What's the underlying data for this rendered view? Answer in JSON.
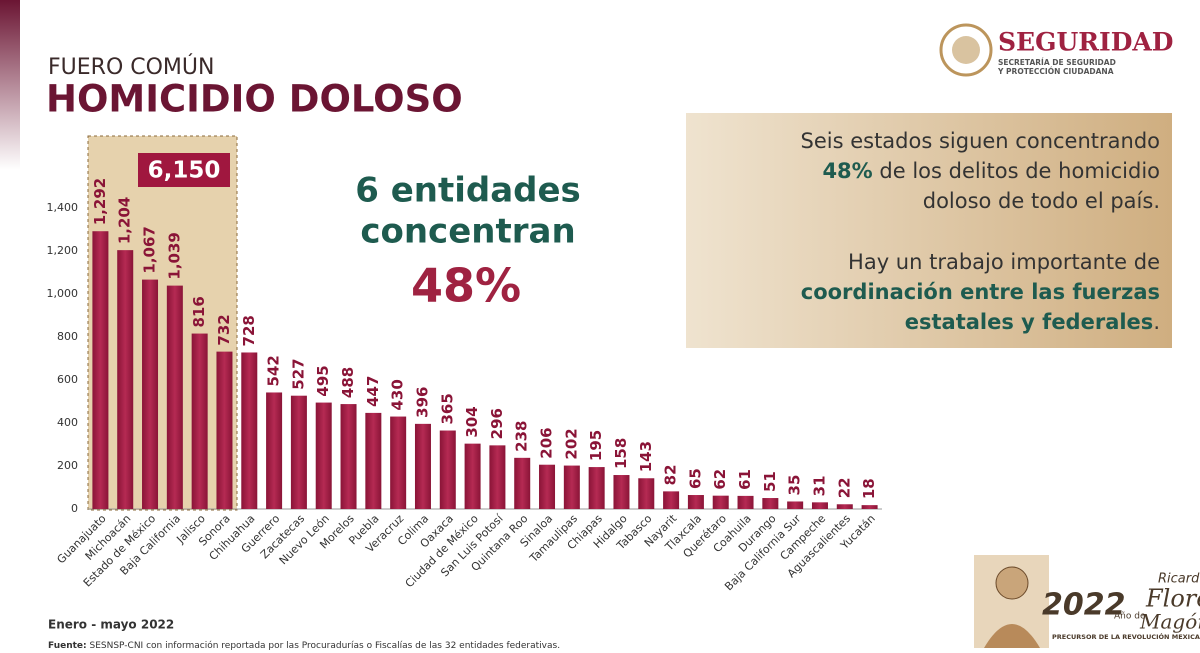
{
  "header": {
    "kicker": "FUERO COMÚN",
    "title": "HOMICIDIO DOLOSO"
  },
  "logo": {
    "name": "SEGURIDAD",
    "line1": "SECRETARÍA DE SEGURIDAD",
    "line2": "Y PROTECCIÓN CIUDADANA"
  },
  "chart_data": {
    "type": "bar",
    "color": "#9f1c44",
    "categories": [
      "Guanajuato",
      "Michoacán",
      "Estado de México",
      "Baja California",
      "Jalisco",
      "Sonora",
      "Chihuahua",
      "Guerrero",
      "Zacatecas",
      "Nuevo León",
      "Morelos",
      "Puebla",
      "Veracruz",
      "Colima",
      "Oaxaca",
      "Ciudad de México",
      "San Luis Potosí",
      "Quintana Roo",
      "Sinaloa",
      "Tamaulipas",
      "Chiapas",
      "Hidalgo",
      "Tabasco",
      "Nayarit",
      "Tlaxcala",
      "Querétaro",
      "Coahuila",
      "Durango",
      "Baja California Sur",
      "Campeche",
      "Aguascalientes",
      "Yucatán"
    ],
    "values": [
      1292,
      1204,
      1067,
      1039,
      816,
      732,
      728,
      542,
      527,
      495,
      488,
      447,
      430,
      396,
      365,
      304,
      296,
      238,
      206,
      202,
      195,
      158,
      143,
      82,
      65,
      62,
      61,
      51,
      35,
      31,
      22,
      18
    ],
    "value_labels": [
      "1,292",
      "1,204",
      "1,067",
      "1,039",
      "816",
      "732",
      "728",
      "542",
      "527",
      "495",
      "488",
      "447",
      "430",
      "396",
      "365",
      "304",
      "296",
      "238",
      "206",
      "202",
      "195",
      "158",
      "143",
      "82",
      "65",
      "62",
      "61",
      "51",
      "35",
      "31",
      "22",
      "18"
    ],
    "ylim": [
      0,
      1400
    ],
    "yticks": [
      0,
      200,
      400,
      600,
      800,
      {
        "value": 1000,
        "label": "1,000"
      },
      {
        "value": 1200,
        "label": "1,200"
      },
      {
        "value": 1400,
        "label": "1,400"
      }
    ],
    "grid": false,
    "highlight_label": "6,150",
    "annotation": {
      "line1": "6 entidades",
      "line2": "concentran",
      "line3": "48%"
    }
  },
  "callout": {
    "p1": [
      "Seis estados siguen concentrando",
      "48%",
      "de los delitos de homicidio",
      "doloso de todo el país."
    ],
    "p2": [
      "Hay un trabajo importante de",
      "coordinación entre las fuerzas",
      "estatales y federales",
      "."
    ]
  },
  "footer": {
    "period": "Enero - mayo 2022",
    "source_label": "Fuente:",
    "source": "SESNSP-CNI con información reportada por las Procuradurías o Fiscalías de las 32 entidades federativas."
  },
  "badge": {
    "year": "2022",
    "prefix": "Año de",
    "first": "Ricardo",
    "middle": "Flores",
    "last": "Magón",
    "tagline": "PRECURSOR DE LA REVOLUCIÓN MEXICANA"
  }
}
